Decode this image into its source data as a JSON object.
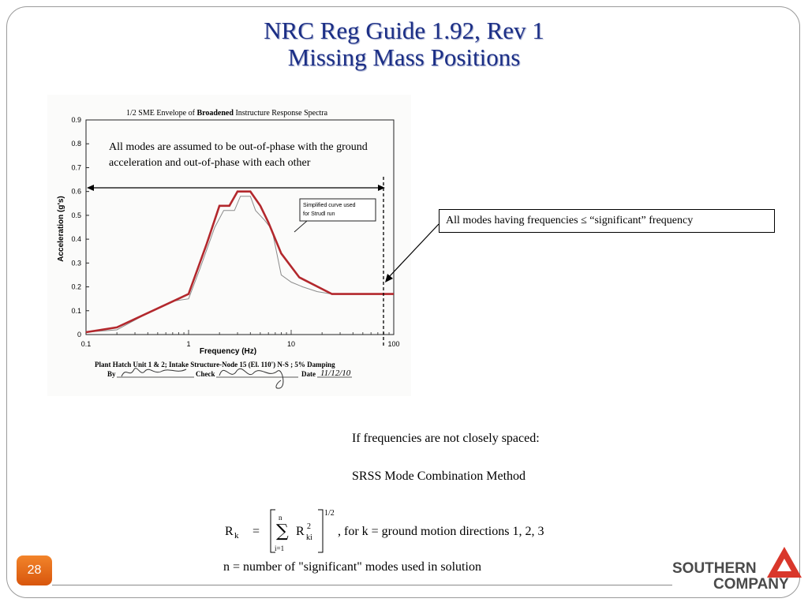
{
  "slide": {
    "title_line1": "NRC Reg Guide 1.92, Rev 1",
    "title_line2": "Missing Mass Positions",
    "page_number": "28"
  },
  "chart_scan": {
    "header_prefix": "1/2 SME Envelope of ",
    "header_bold": "Broadened",
    "header_suffix": " Instructure Response Spectra",
    "ylabel": "Acceleration (g's)",
    "xlabel": "Frequency (Hz)",
    "legend_label_line1": "Simplified curve used",
    "legend_label_line2": "for Strudl run",
    "footer_line1": "Plant Hatch Unit 1 & 2; Intake Structure-Node 15 (El. 110') N-S ; 5% Damping",
    "by_label": "By",
    "check_label": "Check",
    "date_label": "Date",
    "date_value": "11/12/10",
    "colors": {
      "simplified_curve": "#b3282d",
      "raw_curve": "#8c8c8c"
    }
  },
  "chart_data": {
    "type": "line",
    "title": "1/2 SME Envelope of Broadened Instructure Response Spectra",
    "xlabel": "Frequency (Hz)",
    "ylabel": "Acceleration (g's)",
    "x_scale": "log",
    "xlim": [
      0.1,
      100
    ],
    "ylim": [
      0,
      0.9
    ],
    "x_ticks": [
      "0.1",
      "1",
      "10",
      "100"
    ],
    "y_ticks": [
      "0",
      "0.1",
      "0.2",
      "0.3",
      "0.4",
      "0.5",
      "0.6",
      "0.7",
      "0.8",
      "0.9"
    ],
    "grid": false,
    "series": [
      {
        "name": "Simplified curve used for Strudl run",
        "x": [
          0.1,
          0.2,
          0.5,
          1.0,
          1.5,
          2.0,
          2.5,
          3.0,
          4.0,
          5.0,
          6.0,
          8.0,
          12.0,
          25.0,
          50.0,
          100.0
        ],
        "y": [
          0.01,
          0.03,
          0.11,
          0.17,
          0.38,
          0.54,
          0.54,
          0.6,
          0.6,
          0.54,
          0.47,
          0.34,
          0.24,
          0.17,
          0.17,
          0.17
        ]
      },
      {
        "x": [
          0.1,
          0.2,
          0.4,
          0.7,
          1.0,
          1.3,
          1.8,
          2.2,
          2.8,
          3.2,
          4.0,
          4.5,
          5.5,
          6.5,
          8.0,
          10.0,
          13.0,
          18.0,
          25.0,
          33.0,
          40.0,
          50.0
        ],
        "y": [
          0.01,
          0.02,
          0.09,
          0.14,
          0.15,
          0.28,
          0.45,
          0.52,
          0.52,
          0.58,
          0.58,
          0.52,
          0.48,
          0.44,
          0.25,
          0.22,
          0.2,
          0.18,
          0.17,
          0.17,
          0.17,
          0.17
        ]
      }
    ]
  },
  "annotations": {
    "out_of_phase_note": "All modes are assumed to be out-of-phase with the ground acceleration and out-of-phase with each other",
    "callout": "All modes having frequencies ≤ “significant” frequency"
  },
  "body": {
    "not_closely_spaced": "If frequencies are not closely spaced:",
    "method": "SRSS Mode Combination Method",
    "n_definition": "n  =  number of \"significant\" modes used in solution"
  },
  "formula": {
    "lhs": "R",
    "lhs_sub": "k",
    "equals": "=",
    "sum_top": "n",
    "sum_bottom": "i=1",
    "sum_symbol": "∑",
    "term": "R",
    "term_sup": "2",
    "term_sub": "ki",
    "exponent": "1/2",
    "condition": ", for k = ground motion directions 1, 2, 3"
  },
  "logo": {
    "line1": "SOUTHERN",
    "line2": "COMPANY",
    "colors": {
      "triangle": "#d9372b",
      "text": "#4a4a4a"
    }
  }
}
